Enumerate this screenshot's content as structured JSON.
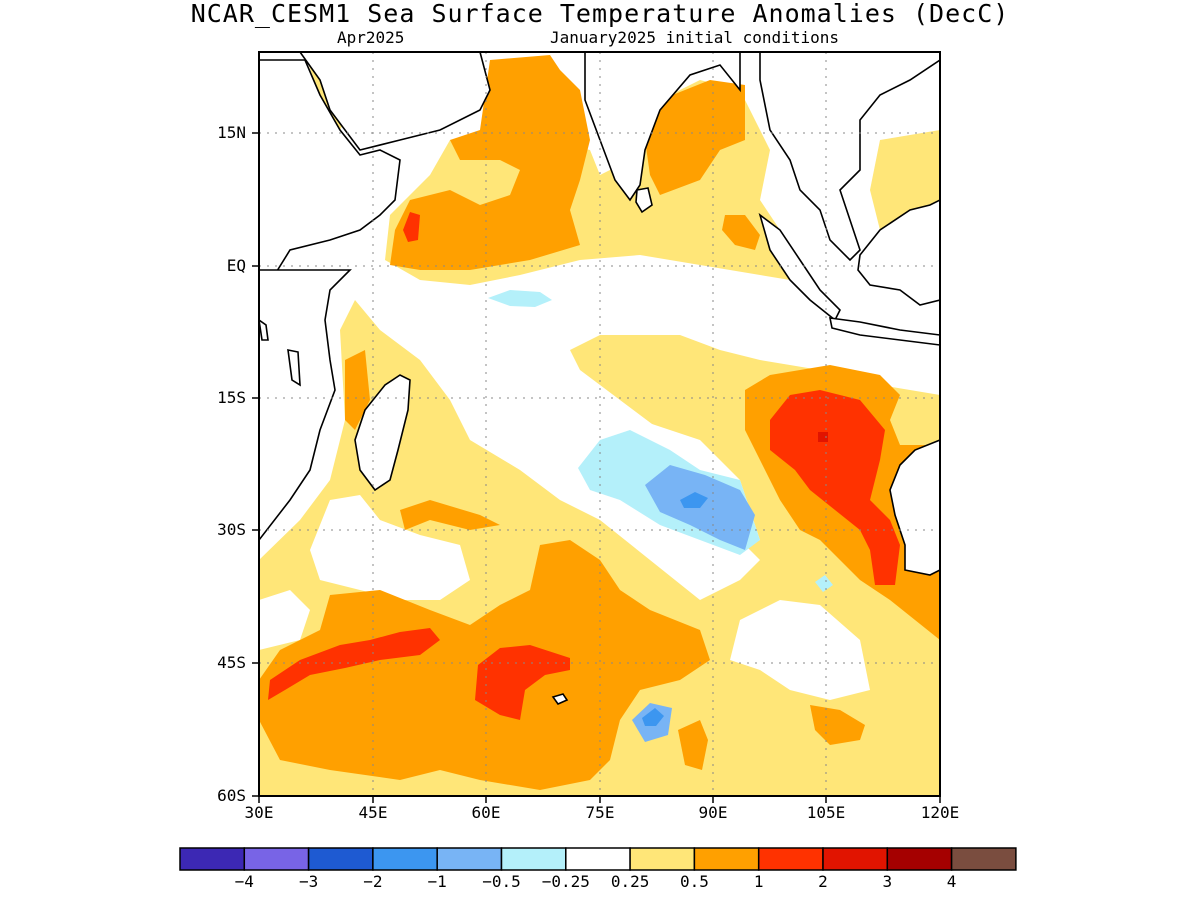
{
  "title": "NCAR_CESM1 Sea Surface Temperature Anomalies (DecC)",
  "subtitle_left": "Apr2025",
  "subtitle_right": "January2025 initial conditions",
  "map": {
    "lon_range": [
      30,
      120
    ],
    "lat_range": [
      -60,
      24
    ],
    "y_ticks": [
      "15N",
      "EQ",
      "15S",
      "30S",
      "45S",
      "60S"
    ],
    "x_ticks": [
      "30E",
      "45E",
      "60E",
      "75E",
      "90E",
      "105E",
      "120E"
    ],
    "grid": "dotted"
  },
  "colorbar": {
    "colors": [
      "#3c28b4",
      "#7864e6",
      "#1e5ad2",
      "#3c96f0",
      "#78b4f5",
      "#b4f0fa",
      "#ffffff",
      "#ffe678",
      "#ffa000",
      "#ff3200",
      "#e11400",
      "#a50000",
      "#7a4d3f"
    ],
    "labels": [
      "−4",
      "−3",
      "−2",
      "−1",
      "−0.5",
      "−0.25",
      "0.25",
      "0.5",
      "1",
      "2",
      "3",
      "4"
    ]
  }
}
